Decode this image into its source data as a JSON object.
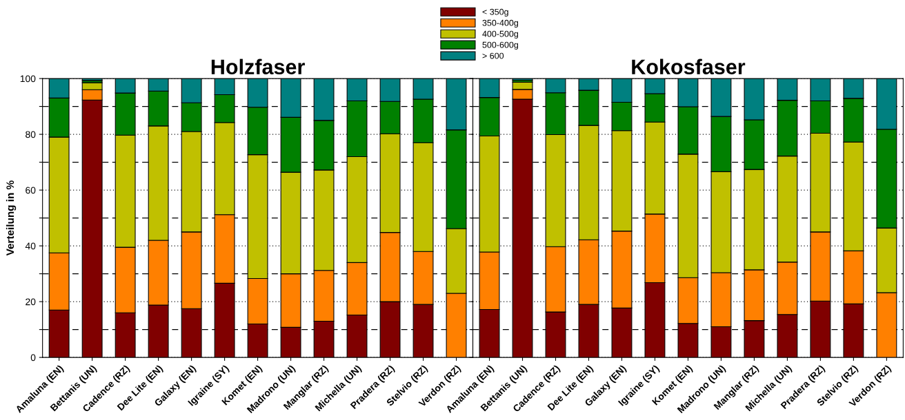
{
  "chart_data": [
    {
      "type": "bar",
      "stacked": true,
      "title": "Holzfaser",
      "ylabel": "Verteilung in %",
      "categories": [
        "Amaluna (EN)",
        "Bettanis (UN)",
        "Cadence (RZ)",
        "Dee Lite (EN)",
        "Galaxy (EN)",
        "Igraine (SY)",
        "Komet (EN)",
        "Madrono (UN)",
        "Manglar (RZ)",
        "Michella (UN)",
        "Pradera (RZ)",
        "Stelvio (RZ)",
        "Verdon (RZ)"
      ],
      "series": [
        {
          "name": "< 350g",
          "color": "#800000",
          "values": [
            17,
            92.3,
            16,
            18.8,
            17.5,
            26.6,
            12,
            10.8,
            13,
            15.2,
            20,
            19,
            0
          ]
        },
        {
          "name": "350-400g",
          "color": "#ff8000",
          "values": [
            20.5,
            3.7,
            23.5,
            23.2,
            27.5,
            24.6,
            16.3,
            19.2,
            18.2,
            18.8,
            24.8,
            19,
            23
          ]
        },
        {
          "name": "400-500g",
          "color": "#c0c000",
          "values": [
            41.5,
            2.5,
            40.2,
            41,
            36,
            33,
            44.4,
            36.4,
            36,
            38,
            35.4,
            39,
            23.2
          ]
        },
        {
          "name": "500-600g",
          "color": "#008000",
          "values": [
            14,
            0.8,
            15.1,
            12.5,
            10.3,
            10,
            17,
            19.7,
            17.8,
            20,
            11.6,
            15.6,
            35.4
          ]
        },
        {
          "name": "> 600",
          "color": "#008080",
          "values": [
            7,
            0.7,
            5.2,
            4.5,
            8.7,
            5.8,
            10.3,
            13.9,
            15,
            8,
            8.2,
            7.4,
            18.4
          ]
        }
      ],
      "ylim": [
        0,
        100
      ],
      "yticks": [
        0,
        {
          "value": 10,
          "label": null
        },
        20,
        {
          "value": 30,
          "label": null
        },
        40,
        {
          "value": 50,
          "label": null
        },
        60,
        {
          "value": 70,
          "label": null
        },
        80,
        {
          "value": 90,
          "label": null
        },
        100
      ],
      "grid": "y",
      "legend": "top"
    },
    {
      "type": "bar",
      "stacked": true,
      "title": "Kokosfaser",
      "categories": [
        "Amaluna (EN)",
        "Bettanis (UN)",
        "Cadence (RZ)",
        "Dee Lite (EN)",
        "Galaxy (EN)",
        "Igraine (SY)",
        "Komet (EN)",
        "Madrono (UN)",
        "Manglar (RZ)",
        "Michella (UN)",
        "Pradera (RZ)",
        "Stelvio (RZ)",
        "Verdon (RZ)"
      ],
      "series": [
        {
          "color": "#800000",
          "values": [
            17.2,
            92.6,
            16.3,
            19,
            17.7,
            26.8,
            12.2,
            11,
            13.2,
            15.4,
            20.2,
            19.2,
            0
          ]
        },
        {
          "color": "#ff8000",
          "values": [
            20.6,
            3.5,
            23.4,
            23.2,
            27.6,
            24.6,
            16.4,
            19.4,
            18.2,
            18.8,
            24.8,
            19,
            23.2
          ]
        },
        {
          "color": "#c0c000",
          "values": [
            41.6,
            2.6,
            40.2,
            41,
            36,
            33,
            44.3,
            36.2,
            36,
            38,
            35.4,
            39,
            23.2
          ]
        },
        {
          "color": "#008000",
          "values": [
            13.8,
            0.7,
            15,
            12.6,
            10.2,
            10.2,
            17,
            19.8,
            17.8,
            20,
            11.6,
            15.7,
            35.4
          ]
        },
        {
          "color": "#008080",
          "values": [
            6.8,
            0.6,
            5.1,
            4.2,
            8.5,
            5.4,
            10.1,
            13.6,
            14.8,
            7.8,
            8,
            7.1,
            18.2
          ]
        }
      ],
      "ylim": [
        0,
        100
      ],
      "yticks": [
        0,
        {
          "value": 10,
          "label": null
        },
        20,
        {
          "value": 30,
          "label": null
        },
        40,
        {
          "value": 50,
          "label": null
        },
        60,
        {
          "value": 70,
          "label": null
        },
        80,
        {
          "value": 90,
          "label": null
        },
        100
      ],
      "grid": "y",
      "tick_labels": "x"
    }
  ]
}
